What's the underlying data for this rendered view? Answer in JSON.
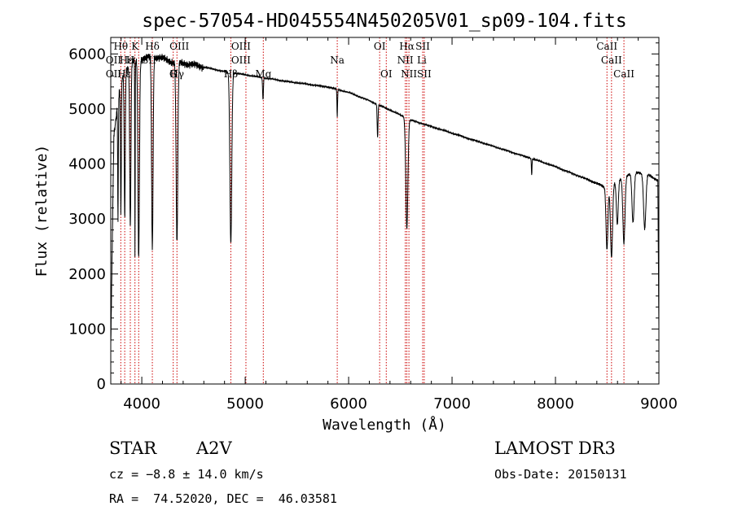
{
  "chart_data": {
    "type": "line",
    "title": "spec-57054-HD045554N450205V01_sp09-104.fits",
    "xlabel": "Wavelength (Å)",
    "ylabel": "Flux (relative)",
    "xlim": [
      3700,
      9000
    ],
    "ylim": [
      0,
      6300
    ],
    "xticks": [
      4000,
      5000,
      6000,
      7000,
      8000,
      9000
    ],
    "yticks": [
      0,
      1000,
      2000,
      3000,
      4000,
      5000,
      6000
    ],
    "xtick_labels": [
      "4000",
      "5000",
      "6000",
      "7000",
      "8000",
      "9000"
    ],
    "ytick_labels": [
      "0",
      "1000",
      "2000",
      "3000",
      "4000",
      "5000",
      "6000"
    ],
    "series": [
      {
        "name": "flux",
        "color": "#000000",
        "continuum": {
          "x": [
            3700,
            3730,
            3800,
            3900,
            4000,
            4100,
            4200,
            4300,
            4400,
            4500,
            4600,
            4700,
            4800,
            5000,
            5200,
            5400,
            5600,
            5800,
            6000,
            6200,
            6400,
            6600,
            6800,
            7000,
            7200,
            7400,
            7600,
            7800,
            8000,
            8200,
            8400,
            8500,
            8600,
            8700,
            8800,
            8900,
            8990,
            9000
          ],
          "y": [
            700,
            4500,
            5550,
            5850,
            5900,
            5950,
            5920,
            5850,
            5830,
            5800,
            5760,
            5720,
            5680,
            5620,
            5560,
            5500,
            5450,
            5400,
            5300,
            5150,
            4980,
            4800,
            4680,
            4560,
            4440,
            4320,
            4200,
            4080,
            3950,
            3800,
            3650,
            3550,
            3700,
            3800,
            3850,
            3800,
            3700,
            1000
          ]
        },
        "absorption_lines": [
          {
            "center": 3770,
            "depth": 2200,
            "width": 3
          },
          {
            "center": 3798,
            "depth": 2400,
            "width": 4
          },
          {
            "center": 3835,
            "depth": 2600,
            "width": 5
          },
          {
            "center": 3889,
            "depth": 3000,
            "width": 6
          },
          {
            "center": 3934,
            "depth": 3600,
            "width": 2
          },
          {
            "center": 3970,
            "depth": 3600,
            "width": 7
          },
          {
            "center": 4102,
            "depth": 3500,
            "width": 7
          },
          {
            "center": 4340,
            "depth": 3300,
            "width": 8
          },
          {
            "center": 4861,
            "depth": 3100,
            "width": 9
          },
          {
            "center": 5172,
            "depth": 400,
            "width": 4
          },
          {
            "center": 5890,
            "depth": 500,
            "width": 3
          },
          {
            "center": 6280,
            "depth": 600,
            "width": 4
          },
          {
            "center": 6563,
            "depth": 2000,
            "width": 10
          },
          {
            "center": 7770,
            "depth": 300,
            "width": 3
          },
          {
            "center": 8498,
            "depth": 1100,
            "width": 9
          },
          {
            "center": 8542,
            "depth": 1300,
            "width": 10
          },
          {
            "center": 8598,
            "depth": 800,
            "width": 9
          },
          {
            "center": 8662,
            "depth": 1200,
            "width": 10
          },
          {
            "center": 8750,
            "depth": 900,
            "width": 10
          },
          {
            "center": 8863,
            "depth": 1000,
            "width": 11
          }
        ]
      }
    ],
    "line_markers": {
      "color": "#cc0000",
      "style": "dotted",
      "positions": [
        3797,
        3835,
        3889,
        3934,
        3970,
        4102,
        4304,
        4340,
        4861,
        5007,
        5175,
        5890,
        6300,
        6364,
        6548,
        6563,
        6583,
        6716,
        6731,
        8498,
        8542,
        8662
      ]
    },
    "line_labels": [
      {
        "text": "Hθ",
        "x": 3797,
        "row": 1
      },
      {
        "text": "K",
        "x": 3934,
        "row": 1
      },
      {
        "text": "Hδ",
        "x": 4102,
        "row": 1
      },
      {
        "text": "OIII",
        "x": 4363,
        "row": 1
      },
      {
        "text": "OIII",
        "x": 4959,
        "row": 1
      },
      {
        "text": "OI",
        "x": 6300,
        "row": 1
      },
      {
        "text": "Hα",
        "x": 6563,
        "row": 1
      },
      {
        "text": "SII",
        "x": 6716,
        "row": 1
      },
      {
        "text": "CaII",
        "x": 8498,
        "row": 1
      },
      {
        "text": "OII",
        "x": 3727,
        "row": 2
      },
      {
        "text": "Hε",
        "x": 3850,
        "row": 2
      },
      {
        "text": "H",
        "x": 3889,
        "row": 2
      },
      {
        "text": "SII",
        "x": 4070,
        "row": 2
      },
      {
        "text": "OIII",
        "x": 4959,
        "row": 2
      },
      {
        "text": "Na",
        "x": 5890,
        "row": 2
      },
      {
        "text": "NII",
        "x": 6548,
        "row": 2
      },
      {
        "text": "Li",
        "x": 6708,
        "row": 2
      },
      {
        "text": "CaII",
        "x": 8542,
        "row": 2
      },
      {
        "text": "OII",
        "x": 3727,
        "row": 3
      },
      {
        "text": "Hε",
        "x": 3830,
        "row": 3
      },
      {
        "text": "Hγ",
        "x": 4340,
        "row": 3
      },
      {
        "text": "G",
        "x": 4304,
        "row": 3
      },
      {
        "text": "Hβ",
        "x": 4861,
        "row": 3
      },
      {
        "text": "Mg",
        "x": 5175,
        "row": 3
      },
      {
        "text": "OI",
        "x": 6364,
        "row": 3
      },
      {
        "text": "NII",
        "x": 6583,
        "row": 3
      },
      {
        "text": "SII",
        "x": 6731,
        "row": 3
      },
      {
        "text": "CaII",
        "x": 8662,
        "row": 3
      }
    ]
  },
  "info": {
    "object_class": "STAR",
    "subclass": "A2V",
    "survey": "LAMOST DR3",
    "cz": "cz = −8.8 ± 14.0 km/s",
    "obs_date": "Obs-Date: 20150131",
    "coords": "RA =  74.52020, DEC =  46.03581"
  }
}
